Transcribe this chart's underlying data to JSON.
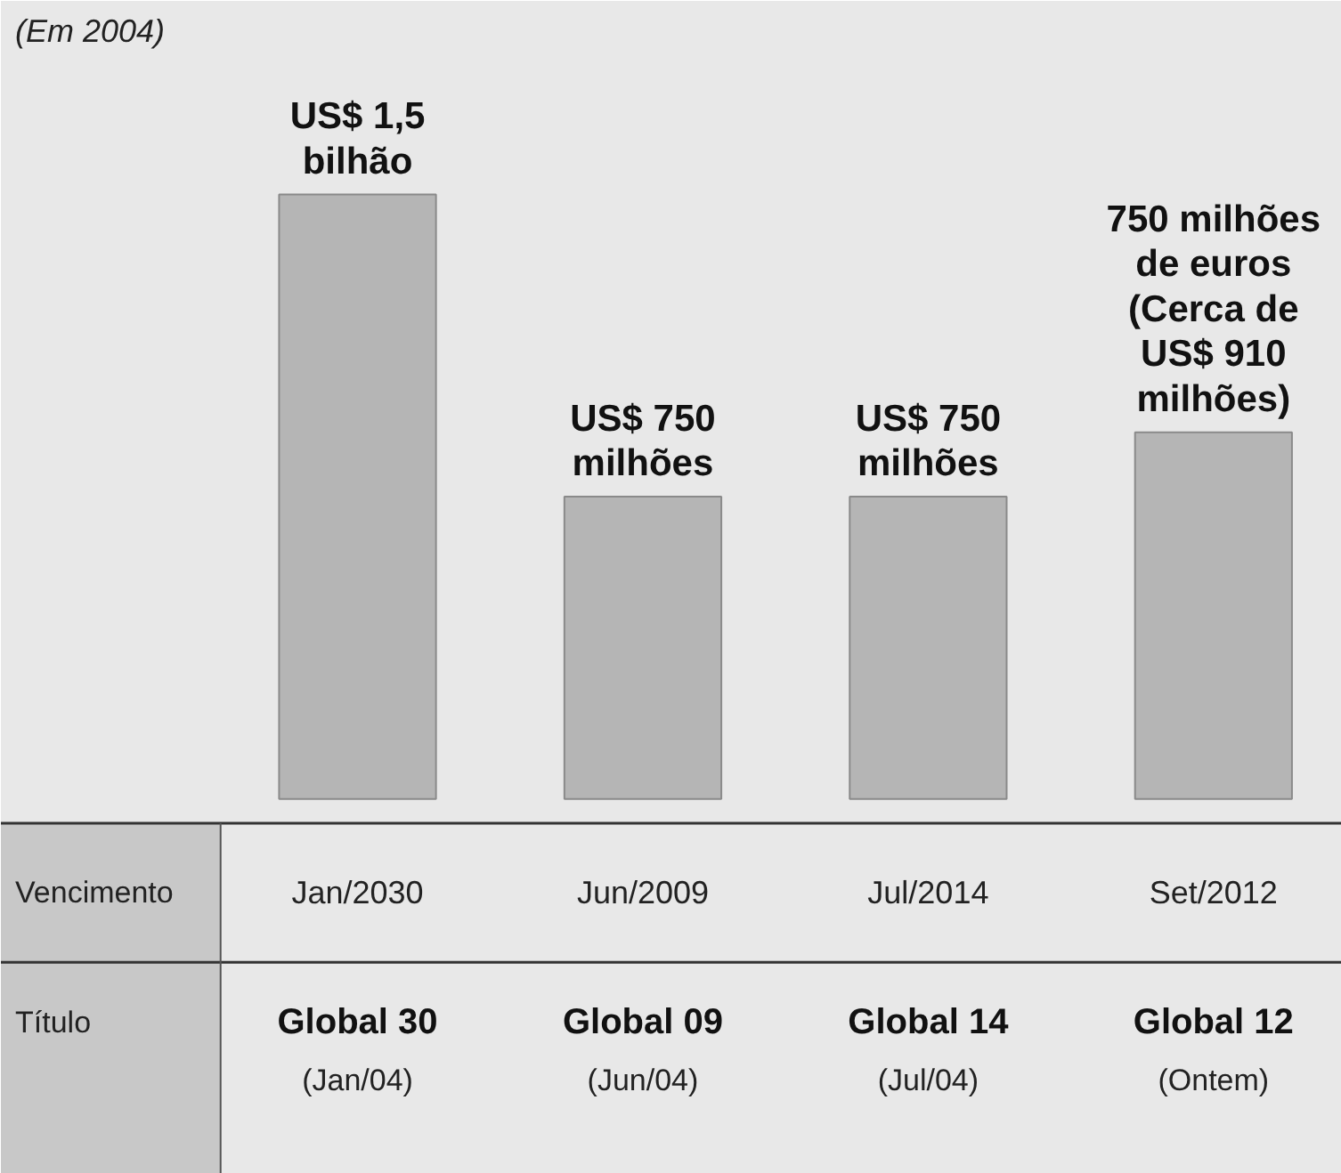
{
  "chart_data": {
    "type": "bar",
    "subtitle": "(Em 2004)",
    "categories": [
      "Global 30",
      "Global 09",
      "Global 14",
      "Global 12"
    ],
    "values": [
      1500,
      750,
      750,
      910
    ],
    "color": "#b5b5b5",
    "value_labels": [
      "US$ 1,5\nbilhão",
      "US$ 750\nmilhões",
      "US$ 750\nmilhões",
      "750 milhões\nde euros\n(Cerca de\nUS$ 910\nmilhões)"
    ],
    "annotations": [
      "Vencimento",
      "Título",
      "Jan/2030",
      "(Jan/04)",
      "Jun/2009",
      "(Jun/04)",
      "Jul/2014",
      "(Jul/04)",
      "Set/2012",
      "(Ontem)"
    ]
  }
}
